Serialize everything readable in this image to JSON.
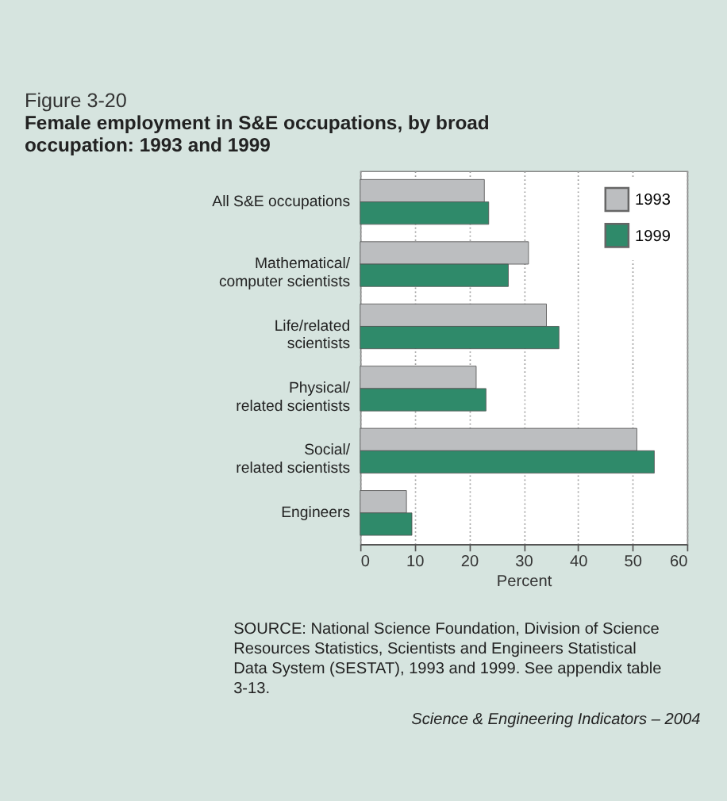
{
  "chart_data": {
    "type": "bar",
    "orientation": "horizontal",
    "subtitle": "Figure 3-20",
    "title": "Female employment in S&E occupations, by broad occupation: 1993 and 1999",
    "categories": [
      "All S&E occupations",
      "Mathematical/\ncomputer scientists",
      "Life/related\nscientists",
      "Physical/\nrelated scientists",
      "Social/\nrelated scientists",
      "Engineers"
    ],
    "series": [
      {
        "name": "1993",
        "color": "#bcbec0",
        "values": [
          22.8,
          30.9,
          34.2,
          21.3,
          50.8,
          8.5
        ]
      },
      {
        "name": "1999",
        "color": "#2f8a6a",
        "values": [
          23.6,
          27.2,
          36.5,
          23.1,
          54.0,
          9.5
        ]
      }
    ],
    "xlim": [
      0,
      60
    ],
    "xticks": [
      0,
      10,
      20,
      30,
      40,
      50,
      60
    ],
    "xlabel": "Percent",
    "grid": "x",
    "legend": "top right",
    "annotations": [
      "SOURCE: National Science Foundation, Division of Science Resources Statistics, Scientists and Engineers Statistical Data System (SESTAT), 1993 and 1999. See appendix table 3-13.",
      "Science & Engineering Indicators – 2004"
    ]
  }
}
